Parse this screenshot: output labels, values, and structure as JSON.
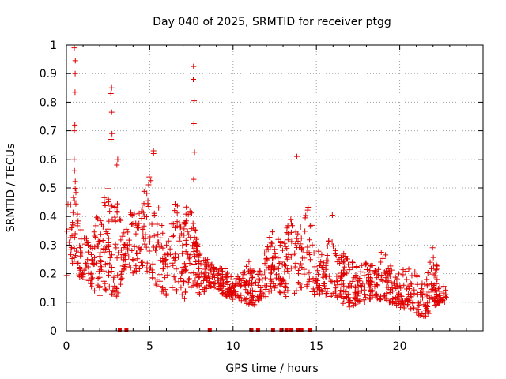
{
  "chart_data": {
    "type": "scatter",
    "title": "Day 040 of 2025, SRMTID for receiver ptgg",
    "xlabel": "GPS time / hours",
    "ylabel": "SRMTID / TECUs",
    "xlim": [
      0,
      25
    ],
    "ylim": [
      0,
      1
    ],
    "xticks": [
      0,
      5,
      10,
      15,
      20
    ],
    "yticks": [
      0,
      0.1,
      0.2,
      0.3,
      0.4,
      0.5,
      0.6,
      0.7,
      0.8,
      0.9,
      1
    ],
    "grid": true,
    "marker": "plus",
    "color": "#e00000",
    "zero_markers": [
      3.2,
      3.6,
      8.6,
      11.1,
      11.5,
      12.4,
      12.9,
      13.2,
      13.5,
      13.9,
      14.1,
      14.6
    ],
    "spikes": [
      {
        "x": 0.5,
        "values": [
          0.99,
          0.945,
          0.9,
          0.835,
          0.72,
          0.7,
          0.6,
          0.56
        ]
      },
      {
        "x": 2.7,
        "values": [
          0.85,
          0.83,
          0.765,
          0.69,
          0.67
        ]
      },
      {
        "x": 3.05,
        "values": [
          0.6,
          0.58
        ]
      },
      {
        "x": 5.25,
        "values": [
          0.63,
          0.62
        ]
      },
      {
        "x": 7.65,
        "values": [
          0.925,
          0.88,
          0.805,
          0.725,
          0.625,
          0.53
        ]
      },
      {
        "x": 13.85,
        "values": [
          0.61
        ]
      }
    ],
    "envelope": {
      "x": [
        0.0,
        0.5,
        1.0,
        1.5,
        2.0,
        2.5,
        3.0,
        3.5,
        4.0,
        4.5,
        5.0,
        5.5,
        6.0,
        6.5,
        7.0,
        7.5,
        8.0,
        8.5,
        9.0,
        9.5,
        10.0,
        10.5,
        11.0,
        11.5,
        12.0,
        12.5,
        13.0,
        13.5,
        14.0,
        14.5,
        15.0,
        15.5,
        16.0,
        16.5,
        17.0,
        17.5,
        18.0,
        18.5,
        19.0,
        19.5,
        20.0,
        20.5,
        21.0,
        21.5,
        22.0,
        22.5,
        22.8
      ],
      "lower": [
        0.15,
        0.2,
        0.18,
        0.15,
        0.12,
        0.15,
        0.1,
        0.22,
        0.2,
        0.22,
        0.2,
        0.15,
        0.12,
        0.15,
        0.1,
        0.15,
        0.12,
        0.15,
        0.15,
        0.12,
        0.1,
        0.1,
        0.08,
        0.1,
        0.12,
        0.15,
        0.12,
        0.12,
        0.15,
        0.15,
        0.12,
        0.12,
        0.12,
        0.1,
        0.08,
        0.1,
        0.1,
        0.12,
        0.1,
        0.1,
        0.08,
        0.08,
        0.06,
        0.04,
        0.08,
        0.1,
        0.1
      ],
      "upper": [
        0.45,
        0.55,
        0.35,
        0.3,
        0.45,
        0.5,
        0.5,
        0.35,
        0.45,
        0.5,
        0.55,
        0.45,
        0.3,
        0.45,
        0.45,
        0.42,
        0.3,
        0.25,
        0.22,
        0.22,
        0.18,
        0.2,
        0.25,
        0.2,
        0.3,
        0.42,
        0.3,
        0.45,
        0.38,
        0.48,
        0.3,
        0.25,
        0.42,
        0.28,
        0.25,
        0.22,
        0.25,
        0.22,
        0.3,
        0.22,
        0.2,
        0.25,
        0.2,
        0.18,
        0.3,
        0.17,
        0.15
      ]
    },
    "point_count": 1300
  }
}
